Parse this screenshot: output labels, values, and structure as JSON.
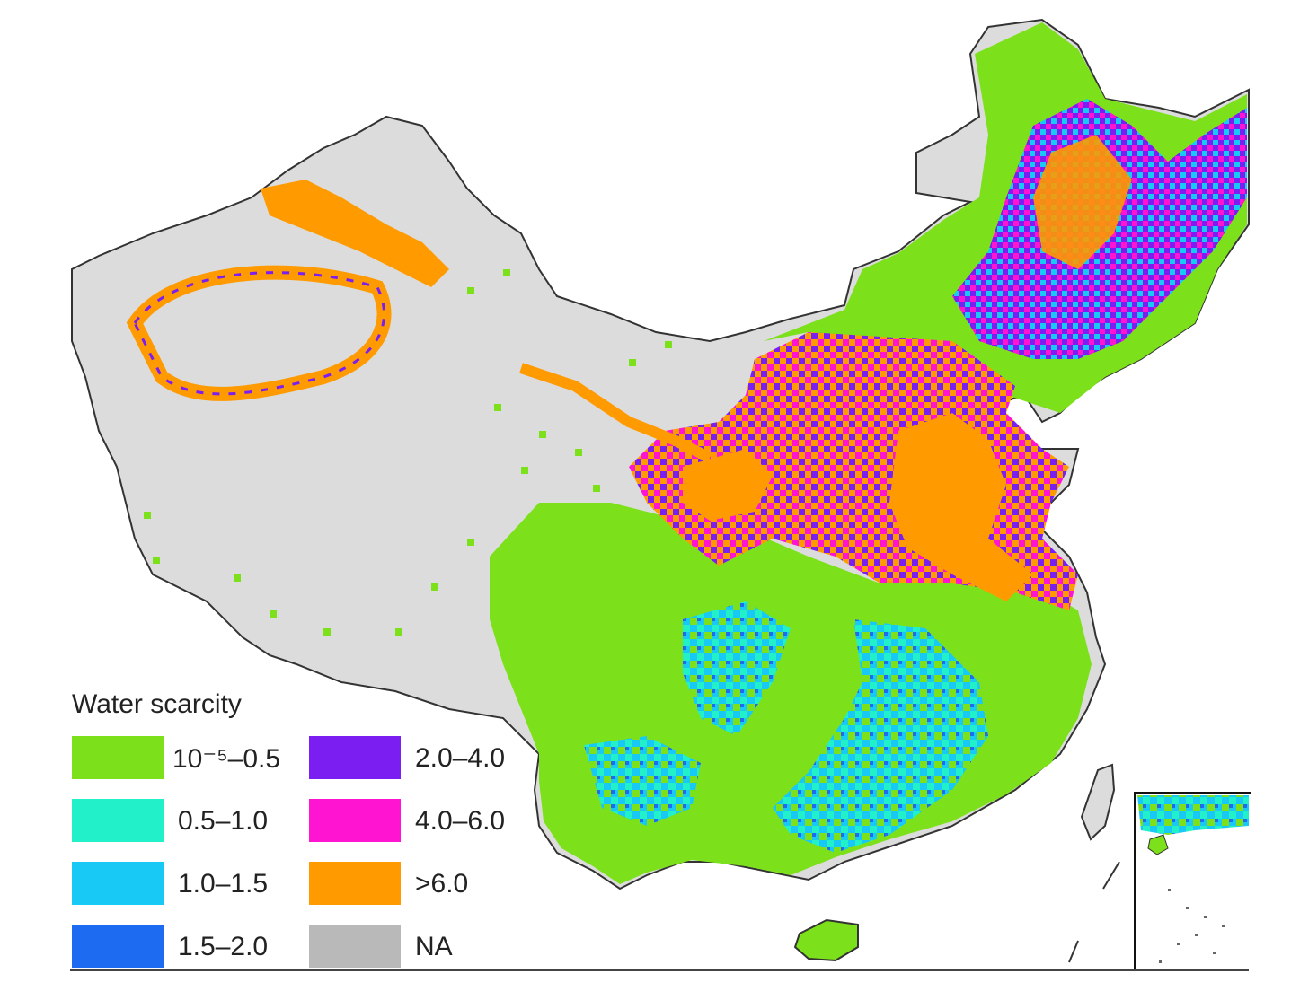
{
  "map": {
    "colors": {
      "background": "#ffffff",
      "na": "#dcdcdc",
      "border": "#333333",
      "class_green": "#7ce01a",
      "class_mint": "#22f0c8",
      "class_cyan": "#19c9f5",
      "class_blue": "#1d6bf0",
      "class_violet": "#7a1ef2",
      "class_magenta": "#ff14d2",
      "class_orange": "#ff9a00"
    }
  },
  "legend": {
    "title": "Water scarcity",
    "items": [
      {
        "label": "10⁻⁵–0.5",
        "color": "#7ce01a"
      },
      {
        "label": "0.5–1.0",
        "color": "#22f0c8"
      },
      {
        "label": "1.0–1.5",
        "color": "#19c9f5"
      },
      {
        "label": "1.5–2.0",
        "color": "#1d6bf0"
      },
      {
        "label": "2.0–4.0",
        "color": "#7a1ef2"
      },
      {
        "label": "4.0–6.0",
        "color": "#ff14d2"
      },
      {
        "label": ">6.0",
        "color": "#ff9a00"
      },
      {
        "label": "NA",
        "color": "#b9b9b9"
      }
    ]
  }
}
